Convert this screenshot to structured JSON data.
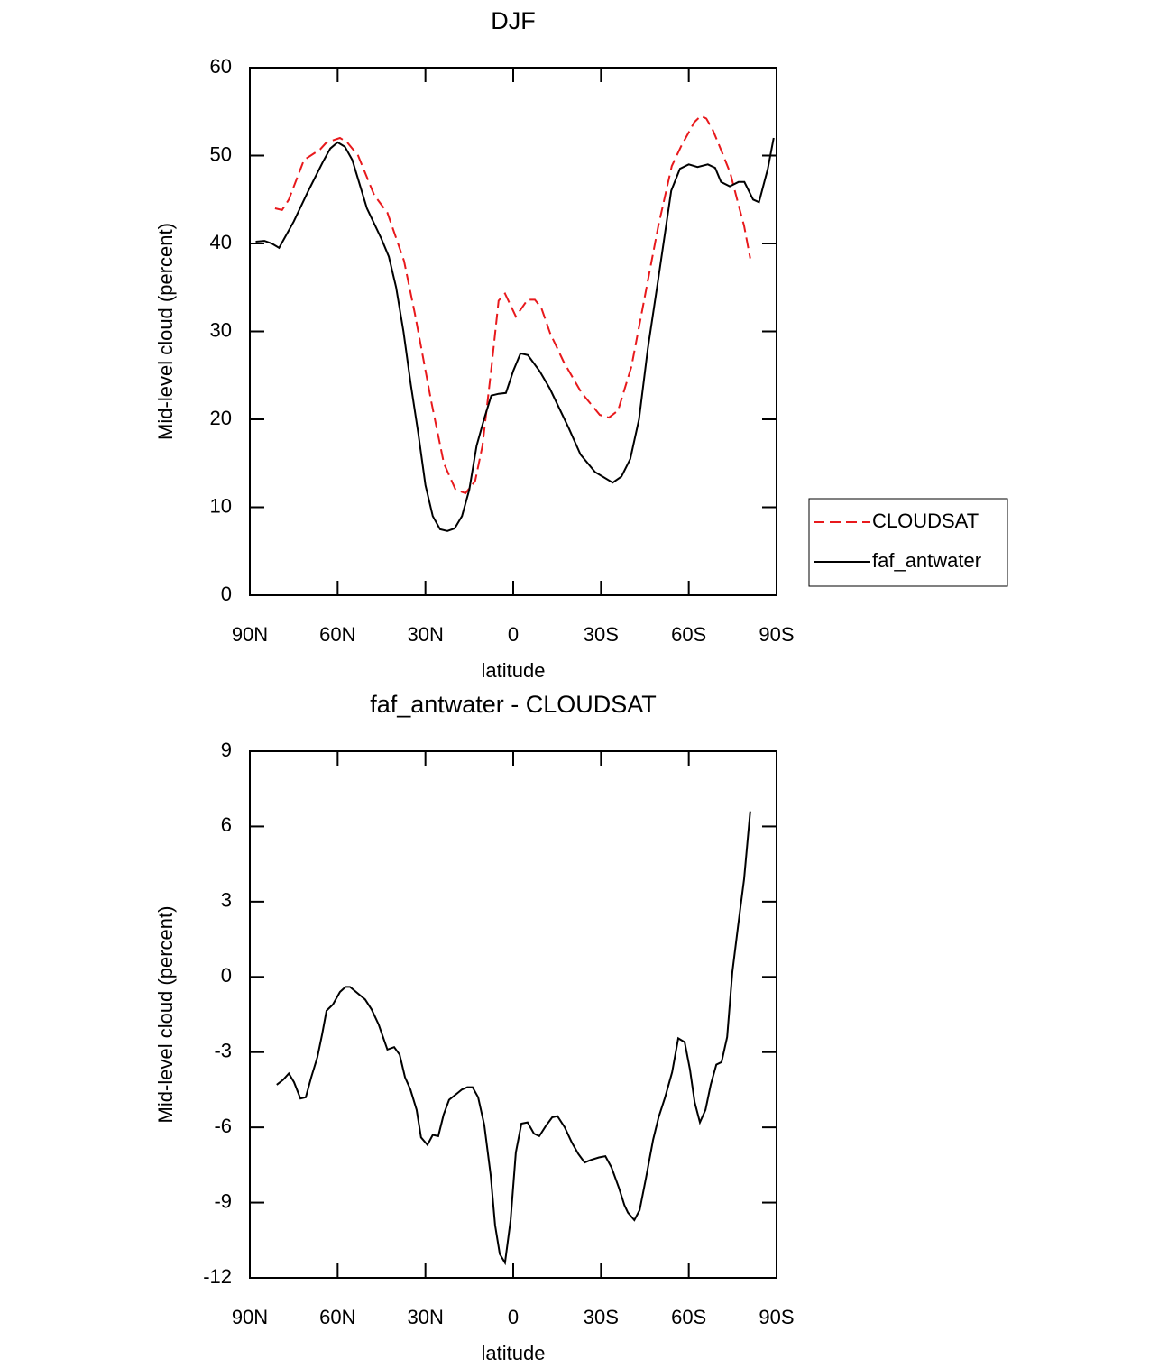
{
  "chart_data": [
    {
      "type": "line",
      "title": "DJF",
      "x_label": "latitude",
      "y_label": "Mid-level cloud (percent)",
      "xlim": [
        90,
        -90
      ],
      "xticks": [
        {
          "value": 90,
          "label": "90N"
        },
        {
          "value": 60,
          "label": "60N"
        },
        {
          "value": 30,
          "label": "30N"
        },
        0,
        {
          "value": -30,
          "label": "30S"
        },
        {
          "value": -60,
          "label": "60S"
        },
        {
          "value": -90,
          "label": "90S"
        }
      ],
      "ylim": [
        0,
        60
      ],
      "yticks": [
        0,
        10,
        20,
        30,
        40,
        50,
        60
      ],
      "legend": "outside-right",
      "series": [
        {
          "name": "CLOUDSAT",
          "color": "#e8191c",
          "dashed": true,
          "x": [
            81.4,
            79,
            76.7,
            71.5,
            66,
            63.8,
            59.2,
            56.7,
            53,
            47.5,
            43,
            37.3,
            33.6,
            28,
            23.7,
            19.7,
            16.3,
            13,
            10.5,
            7.4,
            5,
            2.8,
            -0.9,
            -4.9,
            -7.4,
            -9.6,
            -12.6,
            -17.3,
            -23.4,
            -29.6,
            -32.7,
            -35.8,
            -40.4,
            -45,
            -49.6,
            -54.2,
            -57.3,
            -61.9,
            -64.1,
            -66,
            -68.1,
            -71.2,
            -74.2,
            -77.3,
            -78.9,
            -81
          ],
          "values": [
            44,
            43.8,
            45,
            49.5,
            50.7,
            51.5,
            52,
            51.5,
            50,
            45.5,
            43.5,
            38,
            32,
            22,
            15,
            12,
            11.6,
            13,
            17,
            26,
            33.5,
            34.3,
            31.7,
            33.6,
            33.6,
            32.7,
            29.8,
            26.5,
            23,
            20.5,
            20.2,
            21,
            26,
            34,
            42,
            48.8,
            51,
            53.8,
            54.5,
            54.2,
            53,
            50.5,
            48,
            44,
            42,
            38.3
          ]
        },
        {
          "name": "faf_antwater",
          "color": "#000000",
          "dashed": false,
          "x": [
            88,
            85,
            82.5,
            80,
            75,
            70,
            65,
            62.5,
            60,
            57.5,
            55,
            50,
            45,
            42.5,
            40,
            37.5,
            35,
            32.5,
            30,
            27.5,
            25,
            22.5,
            20,
            17.5,
            15,
            12.5,
            10,
            7.5,
            5,
            2.5,
            0,
            -2.5,
            -5,
            -9,
            -12.5,
            -19,
            -23,
            -28,
            -34,
            -37,
            -40,
            -43,
            -46,
            -49.6,
            -54,
            -57,
            -60,
            -63,
            -66.5,
            -69,
            -71,
            -74,
            -77,
            -79,
            -82,
            -84,
            -87,
            -89
          ],
          "values": [
            40.2,
            40.3,
            40,
            39.5,
            42.5,
            46,
            49.3,
            50.8,
            51.5,
            51,
            49.5,
            44,
            40.5,
            38.5,
            35,
            30,
            24,
            18.5,
            12.5,
            9,
            7.5,
            7.3,
            7.6,
            9,
            12,
            17,
            20,
            22.7,
            22.9,
            23,
            25.5,
            27.5,
            27.3,
            25.5,
            23.5,
            19,
            16,
            14,
            12.8,
            13.5,
            15.5,
            20,
            28,
            36,
            46,
            48.5,
            49,
            48.7,
            49,
            48.6,
            47,
            46.5,
            47,
            47,
            45,
            44.7,
            48.5,
            52
          ]
        }
      ]
    },
    {
      "type": "line",
      "title": "faf_antwater - CLOUDSAT",
      "x_label": "latitude",
      "y_label": "Mid-level cloud (percent)",
      "xlim": [
        90,
        -90
      ],
      "xticks": [
        {
          "value": 90,
          "label": "90N"
        },
        {
          "value": 60,
          "label": "60N"
        },
        {
          "value": 30,
          "label": "30N"
        },
        0,
        {
          "value": -30,
          "label": "30S"
        },
        {
          "value": -60,
          "label": "60S"
        },
        {
          "value": -90,
          "label": "90S"
        }
      ],
      "ylim": [
        -12,
        9
      ],
      "yticks": [
        -12,
        -9,
        -6,
        -3,
        0,
        3,
        6,
        9
      ],
      "color": "#000000",
      "x": [
        80.8,
        78.6,
        76.7,
        74.9,
        72.7,
        70.9,
        69,
        66.9,
        65.3,
        63.8,
        61.6,
        59.2,
        57.3,
        55.8,
        53.7,
        50.6,
        48.4,
        46,
        43,
        40.7,
        38.8,
        37,
        35.1,
        33,
        31.5,
        29.3,
        27.5,
        25.6,
        23.8,
        21.9,
        17.6,
        15.7,
        13.9,
        12,
        9.9,
        7.7,
        6.2,
        4.6,
        2.8,
        0.9,
        -0.9,
        -2.8,
        -4.9,
        -7.1,
        -8.9,
        -11.1,
        -13.3,
        -15.1,
        -17.6,
        -20,
        -22.2,
        -24.4,
        -26.5,
        -29.3,
        -31.5,
        -33.6,
        -36.1,
        -38,
        -39.2,
        -41.4,
        -43.2,
        -45.4,
        -47.8,
        -49.7,
        -51.9,
        -54.3,
        -56.4,
        -58.6,
        -60.4,
        -62,
        -63.8,
        -65.7,
        -67.5,
        -69.4,
        -71.2,
        -73.1,
        -74.9,
        -76.8,
        -78.9,
        -81
      ],
      "values": [
        -4.3,
        -4.1,
        -3.85,
        -4.2,
        -4.85,
        -4.8,
        -4,
        -3.2,
        -2.3,
        -1.35,
        -1.1,
        -0.6,
        -0.4,
        -0.4,
        -0.6,
        -0.9,
        -1.3,
        -1.9,
        -2.9,
        -2.8,
        -3.1,
        -4,
        -4.5,
        -5.3,
        -6.4,
        -6.7,
        -6.3,
        -6.35,
        -5.5,
        -4.9,
        -4.5,
        -4.4,
        -4.4,
        -4.8,
        -5.9,
        -7.9,
        -9.9,
        -11.05,
        -11.4,
        -9.7,
        -7,
        -5.85,
        -5.8,
        -6.25,
        -6.35,
        -5.95,
        -5.6,
        -5.55,
        -6,
        -6.6,
        -7.05,
        -7.4,
        -7.3,
        -7.2,
        -7.15,
        -7.6,
        -8.4,
        -9.1,
        -9.4,
        -9.7,
        -9.3,
        -8,
        -6.5,
        -5.6,
        -4.8,
        -3.8,
        -2.45,
        -2.6,
        -3.7,
        -5,
        -5.8,
        -5.3,
        -4.3,
        -3.5,
        -3.4,
        -2.4,
        0.2,
        2,
        3.9,
        6.6
      ]
    }
  ]
}
